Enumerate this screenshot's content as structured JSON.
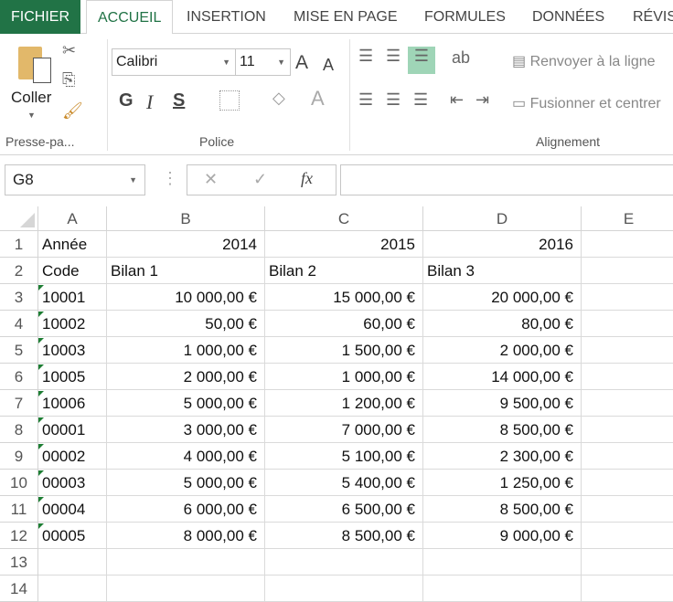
{
  "tabs": [
    "FICHIER",
    "ACCUEIL",
    "INSERTION",
    "MISE EN PAGE",
    "FORMULES",
    "DONNÉES",
    "RÉVIS"
  ],
  "ribbon": {
    "paste": "Coller",
    "clipboard_group": "Presse-pa...",
    "font_group": "Police",
    "align_group": "Alignement",
    "font_name": "Calibri",
    "font_size": "11",
    "bold": "G",
    "italic": "I",
    "underline": "S",
    "wrap_text": "Renvoyer à la ligne",
    "merge": "Fusionner et centrer"
  },
  "formula_bar": {
    "name_box": "G8",
    "fx": "fx",
    "value": ""
  },
  "columns": [
    "A",
    "B",
    "C",
    "D",
    "E"
  ],
  "rows": [
    [
      "Année",
      "2014",
      "2015",
      "2016"
    ],
    [
      "Code",
      "Bilan 1",
      "Bilan 2",
      "Bilan 3"
    ],
    [
      "10001",
      "10 000,00 €",
      "15 000,00 €",
      "20 000,00 €"
    ],
    [
      "10002",
      "50,00 €",
      "60,00 €",
      "80,00 €"
    ],
    [
      "10003",
      "1 000,00 €",
      "1 500,00 €",
      "2 000,00 €"
    ],
    [
      "10005",
      "2 000,00 €",
      "1 000,00 €",
      "14 000,00 €"
    ],
    [
      "10006",
      "5 000,00 €",
      "1 200,00 €",
      "9 500,00 €"
    ],
    [
      "00001",
      "3 000,00 €",
      "7 000,00 €",
      "8 500,00 €"
    ],
    [
      "00002",
      "4 000,00 €",
      "5 100,00 €",
      "2 300,00 €"
    ],
    [
      "00003",
      "5 000,00 €",
      "5 400,00 €",
      "1 250,00 €"
    ],
    [
      "00004",
      "6 000,00 €",
      "6 500,00 €",
      "8 500,00 €"
    ],
    [
      "00005",
      "8 000,00 €",
      "8 500,00 €",
      "9 000,00 €"
    ],
    [
      "",
      "",
      "",
      ""
    ],
    [
      "",
      "",
      "",
      ""
    ]
  ],
  "colors": {
    "accent": "#217346",
    "error_triangle": "#1e7e34"
  }
}
